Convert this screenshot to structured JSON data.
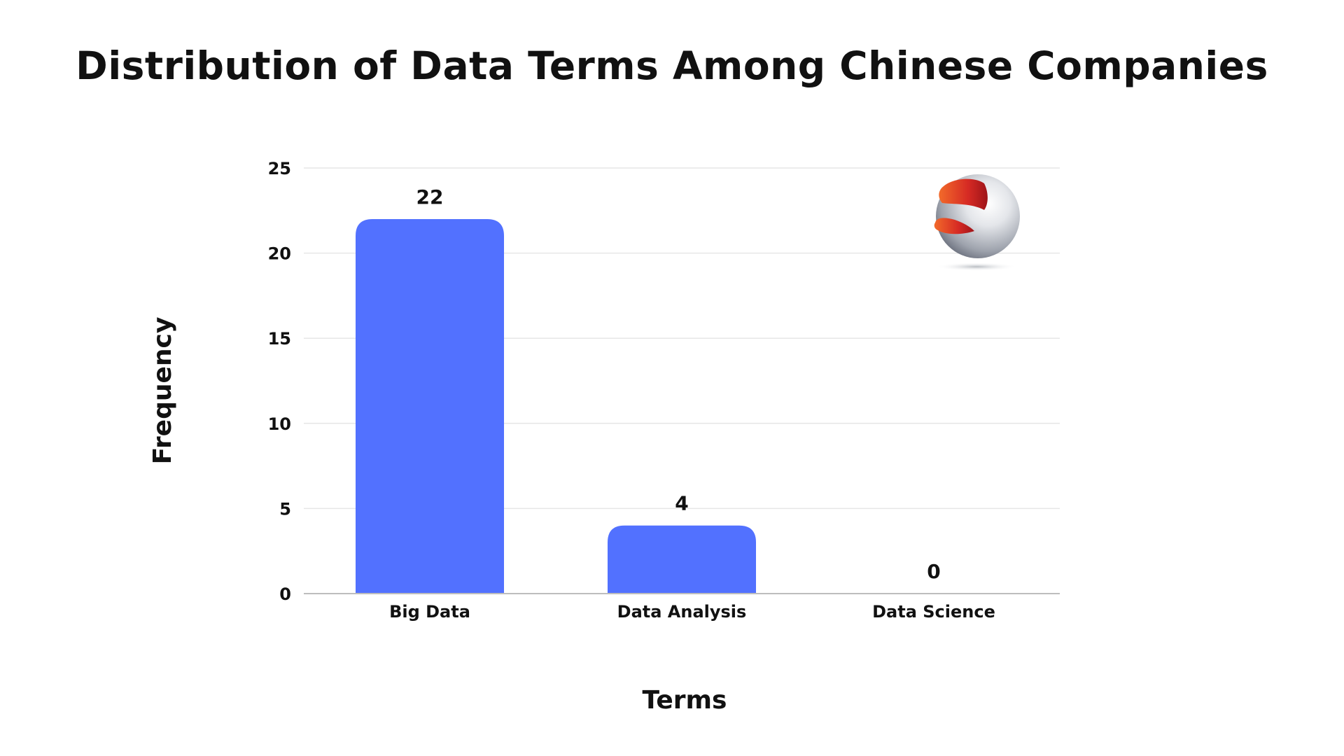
{
  "chart_data": {
    "type": "bar",
    "title": "Distribution of Data Terms Among Chinese Companies",
    "xlabel": "Terms",
    "ylabel": "Frequency",
    "categories": [
      "Big Data",
      "Data Analysis",
      "Data Science"
    ],
    "values": [
      22,
      4,
      0
    ],
    "data_labels": [
      "22",
      "4",
      "0"
    ],
    "ylim": [
      0,
      25
    ],
    "yticks": [
      0,
      5,
      10,
      15,
      20,
      25
    ],
    "ytick_labels": [
      "0",
      "5",
      "10",
      "15",
      "20",
      "25"
    ],
    "grid": true,
    "legend": false,
    "bar_color": "#5271ff",
    "gridline_color": "#e6e6e6",
    "logo": {
      "icon": "sphere-logo-icon",
      "colors": [
        "#c81e1e",
        "#e8632a",
        "#c9cdd4"
      ]
    }
  }
}
